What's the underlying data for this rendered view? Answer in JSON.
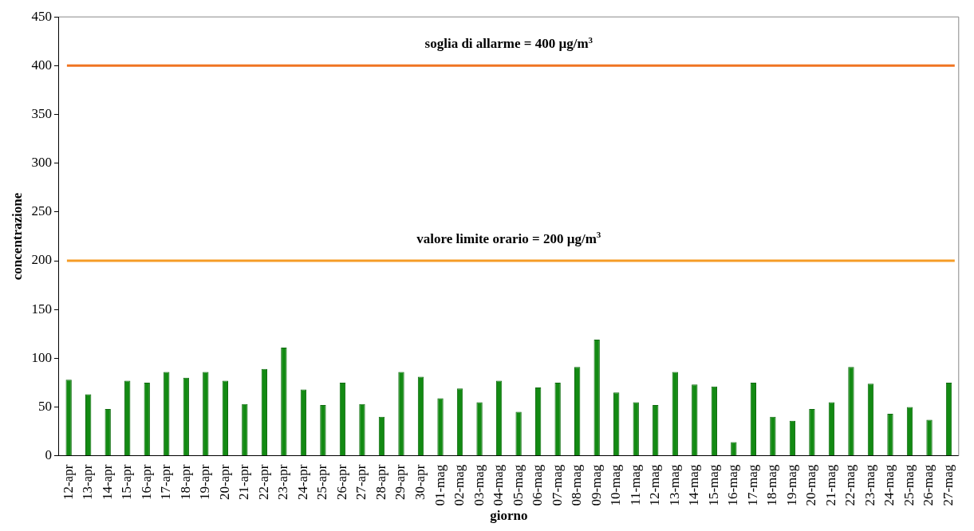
{
  "chart_data": {
    "type": "bar",
    "xlabel": "giorno",
    "ylabel": "concentrazione",
    "categories": [
      "12-apr",
      "13-apr",
      "14-apr",
      "15-apr",
      "16-apr",
      "17-apr",
      "18-apr",
      "19-apr",
      "20-apr",
      "21-apr",
      "22-apr",
      "23-apr",
      "24-apr",
      "25-apr",
      "26-apr",
      "27-apr",
      "28-apr",
      "29-apr",
      "30-apr",
      "01-mag",
      "02-mag",
      "03-mag",
      "04-mag",
      "05-mag",
      "06-mag",
      "07-mag",
      "08-mag",
      "09-mag",
      "10-mag",
      "11-mag",
      "12-mag",
      "13-mag",
      "14-mag",
      "15-mag",
      "16-mag",
      "17-mag",
      "18-mag",
      "19-mag",
      "20-mag",
      "21-mag",
      "22-mag",
      "23-mag",
      "24-mag",
      "25-mag",
      "26-mag",
      "27-mag"
    ],
    "values": [
      78,
      63,
      48,
      77,
      75,
      86,
      80,
      86,
      77,
      53,
      89,
      111,
      68,
      52,
      75,
      53,
      40,
      86,
      81,
      59,
      69,
      55,
      77,
      45,
      70,
      75,
      91,
      119,
      65,
      55,
      52,
      86,
      73,
      71,
      14,
      75,
      40,
      36,
      48,
      55,
      91,
      74,
      43,
      50,
      37,
      75
    ],
    "color": "#138a13",
    "ylim": [
      0,
      450
    ],
    "yticks": [
      0,
      50,
      100,
      150,
      200,
      250,
      300,
      350,
      400,
      450
    ],
    "grid": false,
    "ref_lines": [
      {
        "axis": "y",
        "value": 400,
        "label": "soglia di allarme = 400 µg/m$^{3}$",
        "color": "#f07522"
      },
      {
        "axis": "y",
        "value": 200,
        "label": "valore limite orario = 200 µg/m$^{3}$",
        "color": "#f59c26"
      }
    ]
  }
}
